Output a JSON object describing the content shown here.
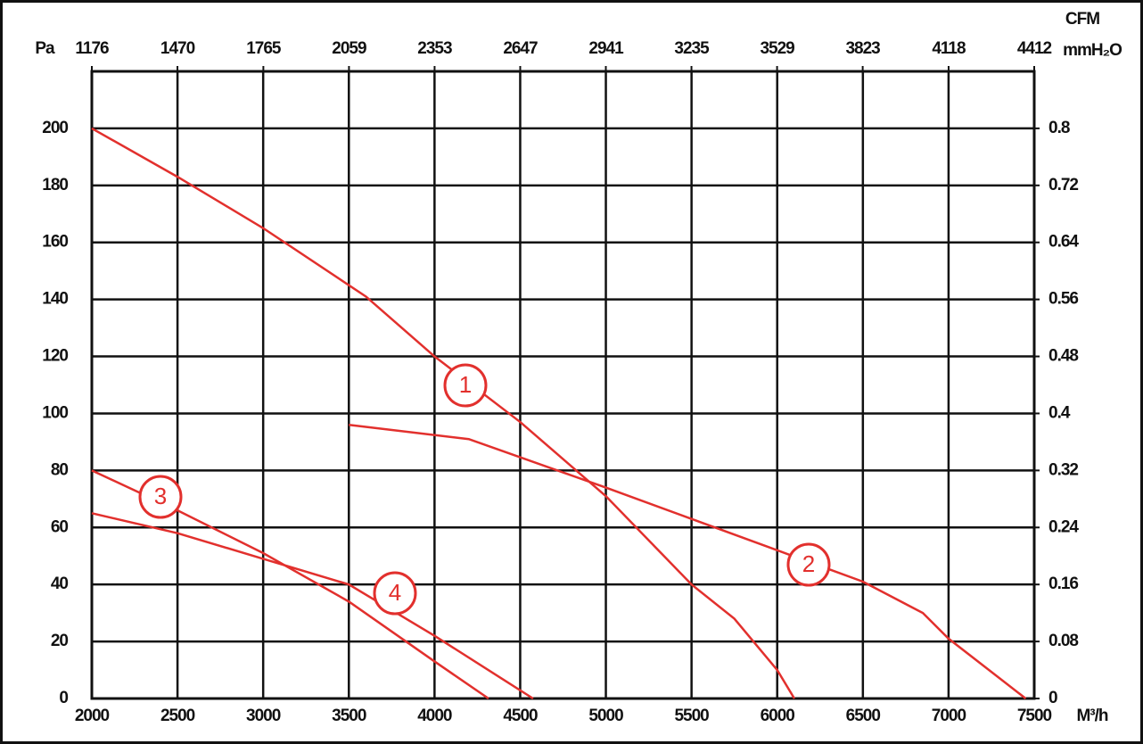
{
  "chart_data": {
    "type": "line",
    "y_label": "Pa",
    "x2_label": "CFM",
    "y2_label": "mmH₂O",
    "x_label": "M³/h",
    "xlim": [
      2000,
      7500
    ],
    "xticks": [
      2000,
      2500,
      3000,
      3500,
      4000,
      4500,
      5000,
      5500,
      6000,
      6500,
      7000,
      7500
    ],
    "x2lim": [
      1176,
      4412
    ],
    "x2ticks": [
      1176,
      1470,
      1765,
      2059,
      2353,
      2647,
      2941,
      3235,
      3529,
      3823,
      4118,
      4412
    ],
    "ylim": [
      0,
      220
    ],
    "yticks": [
      0,
      20,
      40,
      60,
      80,
      100,
      120,
      140,
      160,
      180,
      200
    ],
    "y2lim": [
      0,
      0.88
    ],
    "y2ticks": [
      0,
      0.08,
      0.16,
      0.24,
      0.32,
      0.4,
      0.48,
      0.56,
      0.64,
      0.72,
      0.8
    ],
    "grid": true,
    "series": [
      {
        "name": "1",
        "color": "#e2302d",
        "x": [
          2000,
          2500,
          3000,
          3600,
          4000,
          4500,
          5000,
          5500,
          5750,
          6000,
          6100
        ],
        "values": [
          200,
          183,
          165,
          141,
          120,
          97,
          71,
          40,
          28,
          10,
          0
        ]
      },
      {
        "name": "2",
        "color": "#e2302d",
        "x": [
          3500,
          4200,
          5000,
          5500,
          6000,
          6500,
          6850,
          7000,
          7450
        ],
        "values": [
          96,
          91,
          74,
          63,
          52,
          41,
          30,
          21,
          0
        ]
      },
      {
        "name": "3",
        "color": "#e2302d",
        "x": [
          2000,
          2500,
          3000,
          3500,
          4000,
          4315
        ],
        "values": [
          80,
          66,
          51,
          34,
          13,
          0
        ]
      },
      {
        "name": "4",
        "color": "#e2302d",
        "x": [
          2000,
          2500,
          3000,
          3500,
          4000,
          4575
        ],
        "values": [
          65,
          58,
          49,
          40,
          22,
          0
        ]
      }
    ]
  }
}
